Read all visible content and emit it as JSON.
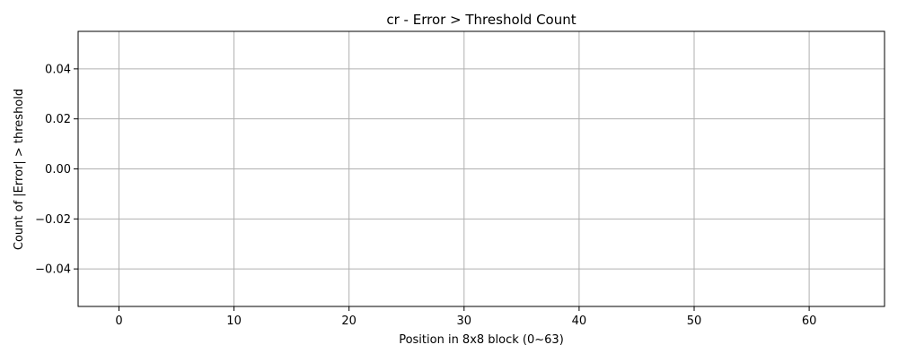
{
  "chart_data": {
    "type": "bar",
    "title": "cr - Error > Threshold Count",
    "xlabel": "Position in 8x8 block (0~63)",
    "ylabel": "Count of |Error| > threshold",
    "x": [],
    "values": [],
    "xlim": [
      -3.55,
      66.55
    ],
    "ylim": [
      -0.055,
      0.055
    ],
    "xticks": [
      0,
      10,
      20,
      30,
      40,
      50,
      60
    ],
    "xtick_labels": [
      "0",
      "10",
      "20",
      "30",
      "40",
      "50",
      "60"
    ],
    "yticks": [
      -0.04,
      -0.02,
      0.0,
      0.02,
      0.04
    ],
    "ytick_labels": [
      "−0.04",
      "−0.02",
      "0.00",
      "0.02",
      "0.04"
    ],
    "grid": true,
    "colors": {
      "grid": "#b0b0b0",
      "axis": "#000000",
      "bar": "#1f77b4"
    }
  }
}
